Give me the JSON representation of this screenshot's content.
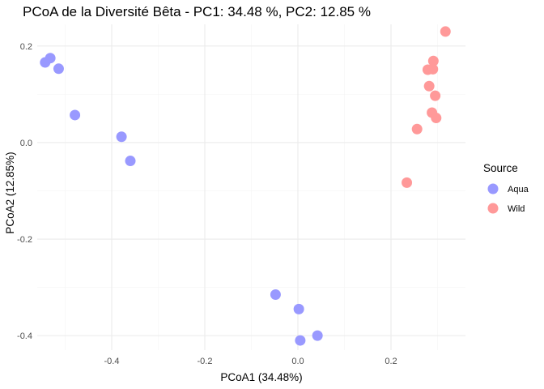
{
  "chart_data": {
    "type": "scatter",
    "title": "PCoA de la Diversité Bêta - PC1:  34.48 %, PC2:  12.85 %",
    "xlabel": "PCoA1 (34.48%)",
    "ylabel": "PCoA2 (12.85%)",
    "xlim": [
      -0.56,
      0.36
    ],
    "ylim": [
      -0.43,
      0.245
    ],
    "x_ticks": [
      -0.4,
      -0.2,
      0.0,
      0.2
    ],
    "x_tick_labels": [
      "-0.4",
      "-0.2",
      "0.0",
      "0.2"
    ],
    "y_ticks": [
      -0.4,
      -0.2,
      0.0,
      0.2
    ],
    "y_tick_labels": [
      "-0.4",
      "-0.2",
      "0.0",
      "0.2"
    ],
    "grid": true,
    "legend": {
      "title": "Source",
      "position": "right"
    },
    "series": [
      {
        "name": "Aqua",
        "color": "#9999ff",
        "points": [
          {
            "x": -0.543,
            "y": 0.166
          },
          {
            "x": -0.532,
            "y": 0.175
          },
          {
            "x": -0.514,
            "y": 0.153
          },
          {
            "x": -0.479,
            "y": 0.057
          },
          {
            "x": -0.379,
            "y": 0.012
          },
          {
            "x": -0.36,
            "y": -0.038
          },
          {
            "x": -0.048,
            "y": -0.315
          },
          {
            "x": 0.002,
            "y": -0.345
          },
          {
            "x": 0.005,
            "y": -0.41
          },
          {
            "x": 0.042,
            "y": -0.4
          }
        ]
      },
      {
        "name": "Wild",
        "color": "#ff9999",
        "points": [
          {
            "x": 0.317,
            "y": 0.23
          },
          {
            "x": 0.291,
            "y": 0.169
          },
          {
            "x": 0.279,
            "y": 0.151
          },
          {
            "x": 0.29,
            "y": 0.152
          },
          {
            "x": 0.282,
            "y": 0.117
          },
          {
            "x": 0.295,
            "y": 0.097
          },
          {
            "x": 0.288,
            "y": 0.062
          },
          {
            "x": 0.297,
            "y": 0.051
          },
          {
            "x": 0.256,
            "y": 0.028
          },
          {
            "x": 0.234,
            "y": -0.083
          }
        ]
      }
    ]
  }
}
